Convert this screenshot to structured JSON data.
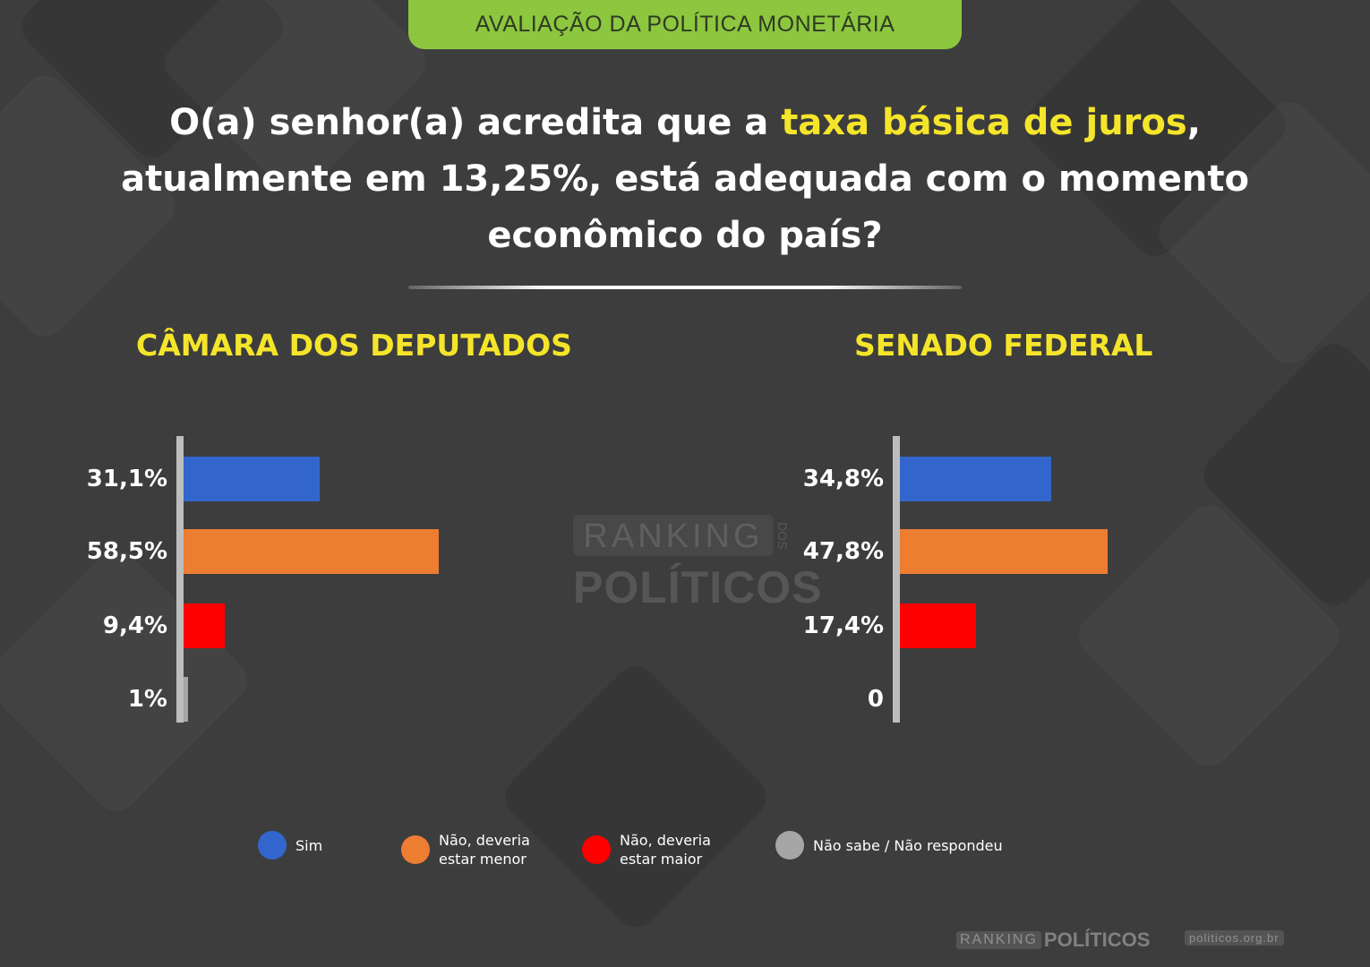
{
  "header": {
    "label": "AVALIAÇÃO DA POLÍTICA MONETÁRIA"
  },
  "question": {
    "part1": "O(a) senhor(a) acredita que a ",
    "highlight": "taxa básica de juros",
    "part2": ", atualmente em 13,25%, está adequada com o momento econômico do país?"
  },
  "colors": {
    "sim": "#3366cc",
    "menor": "#ed7d31",
    "maior": "#ff0000",
    "nao_sabe": "#a6a6a6",
    "accent": "#f5e52a",
    "header_bg": "#8dc63f"
  },
  "chart_data": [
    {
      "type": "bar",
      "orientation": "horizontal",
      "title": "CÂMARA DOS DEPUTADOS",
      "categories": [
        "Sim",
        "Não, deveria estar menor",
        "Não, deveria estar maior",
        "Não sabe / Não respondeu"
      ],
      "values": [
        31.1,
        58.5,
        9.4,
        1
      ],
      "labels": [
        "31,1%",
        "58,5%",
        "9,4%",
        "1%"
      ],
      "xlim": [
        0,
        100
      ]
    },
    {
      "type": "bar",
      "orientation": "horizontal",
      "title": "SENADO FEDERAL",
      "categories": [
        "Sim",
        "Não, deveria estar menor",
        "Não, deveria estar maior",
        "Não sabe / Não respondeu"
      ],
      "values": [
        34.8,
        47.8,
        17.4,
        0
      ],
      "labels": [
        "34,8%",
        "47,8%",
        "17,4%",
        "0"
      ],
      "xlim": [
        0,
        100
      ]
    }
  ],
  "legend": [
    {
      "label": "Sim",
      "color": "#3366cc"
    },
    {
      "label": "Não, deveria\nestar menor",
      "color": "#ed7d31"
    },
    {
      "label": "Não, deveria\nestar maior",
      "color": "#ff0000"
    },
    {
      "label": "Não sabe / Não respondeu",
      "color": "#a6a6a6"
    }
  ],
  "watermark": {
    "line1": "RANKING",
    "line2": "POLÍTICOS",
    "small": "DOS"
  },
  "footer": {
    "logo1": "RANKING",
    "logo2": "POLÍTICOS",
    "url": "politicos.org.br"
  }
}
